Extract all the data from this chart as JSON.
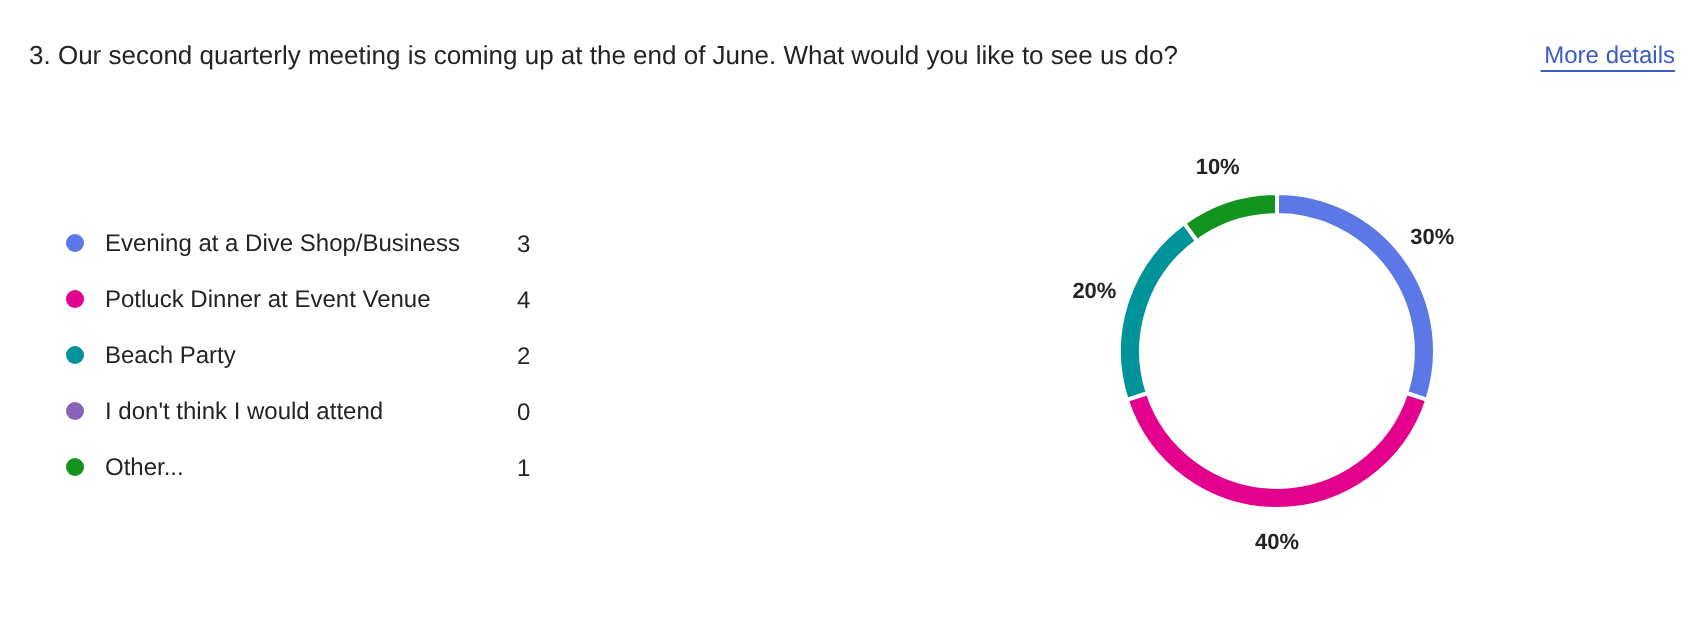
{
  "chart_data": {
    "type": "donut",
    "title": "3. Our second quarterly meeting is coming up at the end of June. What would you like to see us do?",
    "annotations": [
      "More details",
      "3",
      "4",
      "2",
      "0",
      "1"
    ],
    "categories": [
      "Evening at a Dive Shop/Business",
      "Potluck Dinner at Event Venue",
      "Beach Party",
      "I don't think I would attend",
      "Other..."
    ],
    "values": [
      30,
      40,
      20,
      0,
      10
    ],
    "colors": [
      "#5b78e6",
      "#e3008c",
      "#00949a",
      "#8764b8",
      "#13941f"
    ],
    "value_labels": [
      "30%",
      "40%",
      "20%",
      null,
      "10%"
    ],
    "legend": "left"
  }
}
